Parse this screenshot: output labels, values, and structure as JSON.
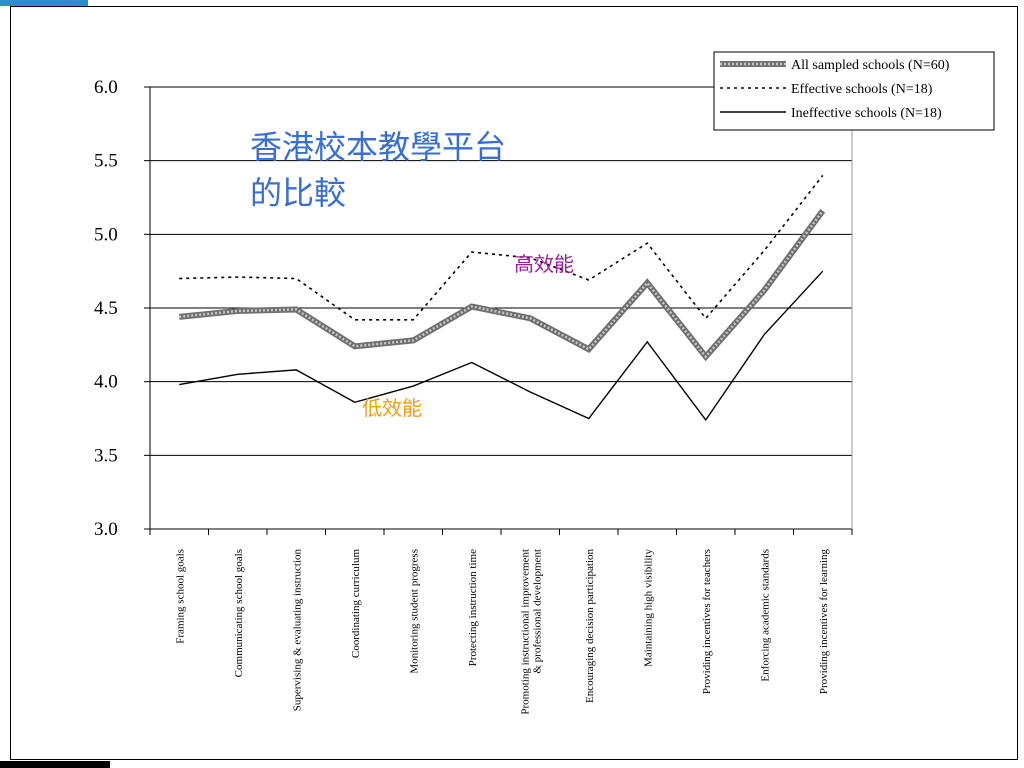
{
  "overlay_title": [
    "香港校本教學平台",
    "的比較"
  ],
  "annotations": {
    "high": "高效能",
    "low": "低效能"
  },
  "colors": {
    "title": "#3b6fc9",
    "high_annotation": "#9b1f9b",
    "low_annotation": "#f39c12",
    "corner_accent": "#2a8fd0"
  },
  "chart_data": {
    "type": "line",
    "ylim": [
      3.0,
      6.0
    ],
    "yticks": [
      "3.0",
      "3.5",
      "4.0",
      "4.5",
      "5.0",
      "5.5",
      "6.0"
    ],
    "grid": true,
    "legend_position": "top-right",
    "categories": [
      [
        "Framing school goals"
      ],
      [
        "Communicating school goals"
      ],
      [
        "Supervising & evaluating instruction"
      ],
      [
        "Coordinating curriculum"
      ],
      [
        "Monitoring student progress"
      ],
      [
        "Protecting instruction time"
      ],
      [
        "Promoting instructional improvement",
        "& professional development"
      ],
      [
        "Encouraging decision participation"
      ],
      [
        "Maintaining high visibility"
      ],
      [
        "Providing incentives for teachers"
      ],
      [
        "Enforcing academic standards"
      ],
      [
        "Providing incentives for learning"
      ]
    ],
    "series": [
      {
        "name": "All sampled schools (N=60)",
        "style": "thick-gray",
        "values": [
          4.44,
          4.48,
          4.49,
          4.24,
          4.28,
          4.51,
          4.43,
          4.22,
          4.67,
          4.17,
          4.62,
          5.16
        ]
      },
      {
        "name": "Effective schools (N=18)",
        "style": "dotted",
        "values": [
          4.7,
          4.71,
          4.7,
          4.42,
          4.42,
          4.88,
          4.84,
          4.69,
          4.94,
          4.43,
          4.89,
          5.4
        ]
      },
      {
        "name": "Ineffective schools (N=18)",
        "style": "solid",
        "values": [
          3.98,
          4.05,
          4.08,
          3.86,
          3.97,
          4.13,
          3.93,
          3.75,
          4.27,
          3.74,
          4.32,
          4.75
        ]
      }
    ]
  }
}
